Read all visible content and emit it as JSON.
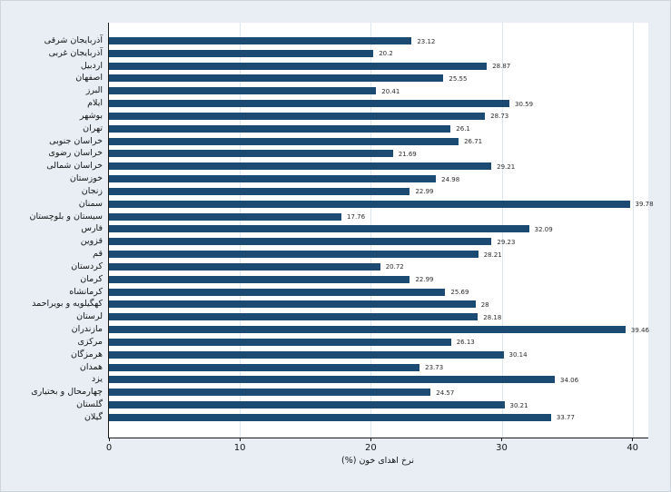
{
  "figure": {
    "background_color": "#e8eef4",
    "plot_background_color": "#ffffff",
    "bar_color": "#1b4a72",
    "grid_color": "#dce8f2",
    "axis_color": "#1a1a1a"
  },
  "chart_data": {
    "type": "bar",
    "orientation": "horizontal",
    "title": "",
    "xlabel": "نرخ اهدای خون (%)",
    "ylabel": "",
    "xlim": [
      0,
      41.2
    ],
    "x_ticks": [
      0,
      10,
      20,
      30,
      40
    ],
    "grid": true,
    "legend": "none",
    "categories": [
      "آذربایجان شرقی",
      "آذربایجان غربی",
      "اردبیل",
      "اصفهان",
      "البرز",
      "ایلام",
      "بوشهر",
      "تهران",
      "خراسان جنوبی",
      "خراسان رضوی",
      "خراسان شمالی",
      "خوزستان",
      "زنجان",
      "سمنان",
      "سیستان و بلوچستان",
      "فارس",
      "قزوین",
      "قم",
      "کردستان",
      "کرمان",
      "کرمانشاه",
      "کهگیلویه و بویراحمد",
      "لرستان",
      "مازندران",
      "مرکزی",
      "هرمزگان",
      "همدان",
      "یزد",
      "چهارمحال و بختیاری",
      "گلستان",
      "گیلان"
    ],
    "values": [
      23.12,
      20.2,
      28.87,
      25.55,
      20.41,
      30.59,
      28.73,
      26.1,
      26.71,
      21.69,
      29.21,
      24.98,
      22.99,
      39.78,
      17.76,
      32.09,
      29.23,
      28.21,
      20.72,
      22.99,
      25.69,
      28,
      28.18,
      39.46,
      26.13,
      30.14,
      23.73,
      34.06,
      24.57,
      30.21,
      33.77
    ],
    "value_labels": [
      "23.12",
      "20.2",
      "28.87",
      "25.55",
      "20.41",
      "30.59",
      "28.73",
      "26.1",
      "26.71",
      "21.69",
      "29.21",
      "24.98",
      "22.99",
      "39.78",
      "17.76",
      "32.09",
      "29.23",
      "28.21",
      "20.72",
      "22.99",
      "25.69",
      "28",
      "28.18",
      "39.46",
      "26.13",
      "30.14",
      "23.73",
      "34.06",
      "24.57",
      "30.21",
      "33.77"
    ]
  }
}
